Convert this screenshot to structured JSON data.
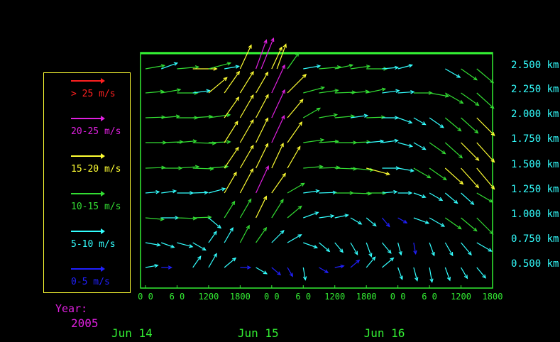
{
  "legend": {
    "items": [
      {
        "label": "> 25 m/s",
        "color": "#ff2020"
      },
      {
        "label": "20-25 m/s",
        "color": "#e020e0"
      },
      {
        "label": "15-20 m/s",
        "color": "#ffff33"
      },
      {
        "label": "10-15 m/s",
        "color": "#33dd33"
      },
      {
        "label": "5-10 m/s",
        "color": "#33ffff"
      },
      {
        "label": "0-5 m/s",
        "color": "#2020ff"
      }
    ]
  },
  "year": {
    "label": "Year:",
    "value": "2005",
    "color": "#e020e0"
  },
  "colors": {
    "frame": "#33ee33",
    "axis_text": "#33ee33",
    "height_text": "#33ffff",
    "background": "#000000"
  },
  "chart_data": {
    "type": "wind-barb",
    "x_tick_labels": [
      "0 0",
      "6 0",
      "1200",
      "1800",
      "0 0",
      "6 0",
      "1200",
      "1800",
      "0 0",
      "6 0",
      "1200",
      "1800"
    ],
    "x_ticks_hours": [
      0,
      6,
      12,
      18,
      24,
      30,
      36,
      42,
      48,
      54,
      60,
      66
    ],
    "x_day_labels": [
      "Jun 14",
      "Jun 15",
      "Jun 16"
    ],
    "x_range_hours": [
      0,
      66
    ],
    "y_tick_labels": [
      "2.500 km",
      "2.250 km",
      "2.000 km",
      "1.750 km",
      "1.500 km",
      "1.250 km",
      "1.000 km",
      "0.750 km",
      "0.500 km"
    ],
    "y_levels_km": [
      2.5,
      2.25,
      2.0,
      1.75,
      1.5,
      1.25,
      1.0,
      0.75,
      0.5
    ],
    "speed_classes_ms": [
      [
        25,
        null
      ],
      [
        20,
        25
      ],
      [
        15,
        20
      ],
      [
        10,
        15
      ],
      [
        5,
        10
      ],
      [
        0,
        5
      ]
    ],
    "series": [
      {
        "level": 2.5,
        "hours": [
          0,
          3,
          6,
          9,
          12,
          15,
          18,
          21,
          22,
          24,
          25,
          27,
          30,
          33,
          36,
          39,
          42,
          45,
          48,
          57,
          60,
          63
        ],
        "speed": [
          12,
          10,
          14,
          16,
          15,
          8,
          18,
          22,
          24,
          16,
          18,
          12,
          10,
          14,
          11,
          12,
          13,
          9,
          8,
          10,
          12,
          14
        ],
        "dir": [
          260,
          250,
          265,
          270,
          255,
          260,
          205,
          200,
          202,
          205,
          200,
          215,
          260,
          265,
          258,
          262,
          270,
          265,
          255,
          300,
          305,
          310
        ]
      },
      {
        "level": 2.25,
        "hours": [
          0,
          3,
          6,
          9,
          12,
          15,
          18,
          21,
          24,
          27,
          30,
          33,
          36,
          39,
          42,
          45,
          48,
          51,
          54,
          57,
          60,
          63
        ],
        "speed": [
          11,
          12,
          13,
          10,
          16,
          18,
          17,
          16,
          22,
          18,
          14,
          12,
          13,
          11,
          12,
          10,
          9,
          11,
          12,
          13,
          14,
          15
        ],
        "dir": [
          265,
          260,
          270,
          262,
          230,
          215,
          212,
          210,
          205,
          225,
          255,
          262,
          268,
          265,
          258,
          262,
          266,
          270,
          280,
          300,
          305,
          312
        ]
      },
      {
        "level": 2.0,
        "hours": [
          0,
          3,
          6,
          9,
          12,
          15,
          18,
          21,
          24,
          27,
          30,
          33,
          36,
          39,
          42,
          45,
          48,
          51,
          54,
          57,
          60,
          63
        ],
        "speed": [
          12,
          11,
          13,
          12,
          14,
          17,
          18,
          18,
          22,
          16,
          12,
          11,
          12,
          10,
          11,
          9,
          8,
          7,
          10,
          13,
          15,
          17
        ],
        "dir": [
          268,
          265,
          270,
          266,
          262,
          215,
          210,
          208,
          205,
          220,
          240,
          260,
          265,
          262,
          268,
          270,
          290,
          300,
          305,
          310,
          312,
          315
        ]
      },
      {
        "level": 1.75,
        "hours": [
          0,
          3,
          6,
          9,
          12,
          15,
          18,
          21,
          24,
          27,
          30,
          33,
          36,
          39,
          42,
          45,
          48,
          51,
          54,
          57,
          60,
          63
        ],
        "speed": [
          13,
          14,
          12,
          15,
          14,
          17,
          18,
          19,
          21,
          17,
          13,
          12,
          14,
          12,
          10,
          9,
          8,
          7,
          12,
          15,
          17,
          18
        ],
        "dir": [
          270,
          268,
          265,
          272,
          268,
          212,
          210,
          206,
          205,
          215,
          262,
          266,
          270,
          268,
          265,
          262,
          285,
          300,
          305,
          312,
          315,
          318
        ]
      },
      {
        "level": 1.5,
        "hours": [
          0,
          3,
          6,
          9,
          12,
          15,
          18,
          21,
          24,
          27,
          30,
          33,
          36,
          39,
          42,
          45,
          48,
          51,
          54,
          57,
          60,
          63
        ],
        "speed": [
          12,
          13,
          14,
          13,
          12,
          17,
          18,
          19,
          19,
          17,
          12,
          13,
          14,
          15,
          16,
          10,
          9,
          12,
          13,
          16,
          18,
          19
        ],
        "dir": [
          268,
          270,
          266,
          272,
          265,
          214,
          210,
          206,
          205,
          210,
          265,
          268,
          272,
          275,
          285,
          270,
          280,
          300,
          305,
          312,
          318,
          320
        ]
      },
      {
        "level": 1.25,
        "hours": [
          0,
          3,
          6,
          9,
          12,
          15,
          18,
          21,
          24,
          27,
          30,
          33,
          36,
          39,
          42,
          45,
          48,
          51,
          54,
          57,
          60,
          63
        ],
        "speed": [
          7,
          8,
          9,
          8,
          10,
          16,
          19,
          21,
          16,
          12,
          9,
          10,
          11,
          13,
          12,
          8,
          7,
          6,
          8,
          9,
          10,
          11
        ],
        "dir": [
          265,
          262,
          270,
          268,
          255,
          210,
          208,
          205,
          215,
          240,
          262,
          268,
          270,
          272,
          270,
          265,
          270,
          290,
          300,
          310,
          312,
          300
        ]
      },
      {
        "level": 1.0,
        "hours": [
          0,
          3,
          6,
          9,
          12,
          15,
          18,
          21,
          24,
          27,
          30,
          33,
          36,
          39,
          42,
          45,
          48,
          51,
          54,
          57,
          60,
          63
        ],
        "speed": [
          11,
          10,
          12,
          11,
          9,
          12,
          14,
          16,
          14,
          11,
          9,
          8,
          7,
          6,
          6,
          5,
          4,
          9,
          10,
          12,
          13,
          15
        ],
        "dir": [
          275,
          270,
          272,
          268,
          310,
          212,
          210,
          206,
          212,
          230,
          250,
          262,
          258,
          300,
          310,
          320,
          300,
          290,
          300,
          305,
          310,
          315
        ]
      },
      {
        "level": 0.75,
        "hours": [
          0,
          3,
          6,
          9,
          12,
          15,
          18,
          21,
          24,
          27,
          30,
          33,
          36,
          39,
          42,
          45,
          48,
          51,
          54,
          57,
          60,
          63
        ],
        "speed": [
          8,
          7,
          9,
          8,
          7,
          10,
          12,
          11,
          10,
          9,
          8,
          7,
          6,
          7,
          8,
          7,
          6,
          5,
          7,
          8,
          9,
          10
        ],
        "dir": [
          280,
          290,
          285,
          300,
          215,
          210,
          208,
          215,
          225,
          240,
          290,
          310,
          320,
          330,
          340,
          320,
          345,
          350,
          340,
          330,
          320,
          300
        ]
      },
      {
        "level": 0.5,
        "hours": [
          0,
          3,
          9,
          12,
          15,
          18,
          21,
          24,
          27,
          30,
          33,
          36,
          39,
          42,
          45,
          48,
          51,
          54,
          57,
          60,
          63
        ],
        "speed": [
          6,
          4,
          7,
          9,
          8,
          4,
          6,
          5,
          4,
          6,
          4,
          3,
          5,
          7,
          8,
          6,
          7,
          8,
          7,
          6,
          7
        ],
        "dir": [
          260,
          270,
          215,
          210,
          230,
          270,
          300,
          310,
          330,
          350,
          300,
          260,
          230,
          220,
          230,
          340,
          345,
          350,
          340,
          330,
          320
        ]
      }
    ]
  }
}
